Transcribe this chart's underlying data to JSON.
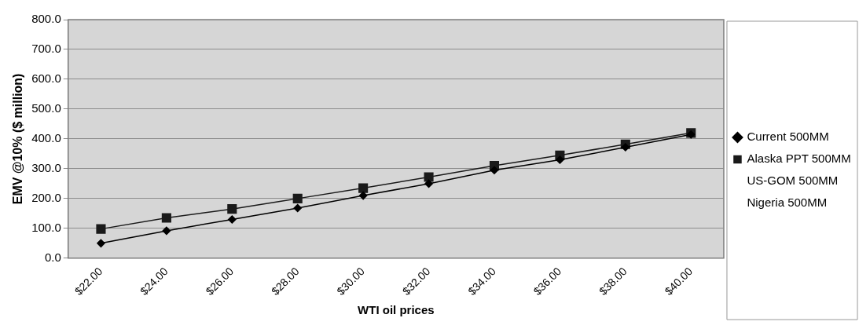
{
  "chart_data": {
    "type": "line",
    "xlabel": "WTI oil prices",
    "ylabel": "EMV @10% ($ million)",
    "categories": [
      "$22.00",
      "$24.00",
      "$26.00",
      "$28.00",
      "$30.00",
      "$32.00",
      "$34.00",
      "$36.00",
      "$38.00",
      "$40.00"
    ],
    "series": [
      {
        "name": "Current 500MM",
        "color": "#000000",
        "marker": "diamond",
        "values": [
          50,
          92,
          130,
          168,
          210,
          250,
          295,
          330,
          372,
          415
        ]
      },
      {
        "name": "Alaska PPT 500MM",
        "color": "#1a1a1a",
        "marker": "square",
        "values": [
          98,
          135,
          165,
          200,
          235,
          272,
          310,
          345,
          382,
          420
        ]
      },
      {
        "name": "US-GOM 500MM",
        "color": null,
        "marker": "none",
        "values": [
          null,
          null,
          null,
          null,
          null,
          null,
          null,
          null,
          null,
          null
        ]
      },
      {
        "name": "Nigeria 500MM",
        "color": null,
        "marker": "none",
        "values": [
          null,
          null,
          null,
          null,
          null,
          null,
          null,
          null,
          null,
          null
        ]
      }
    ],
    "ylim": [
      0,
      800
    ],
    "yticks": [
      {
        "value": 0,
        "label": "0.0"
      },
      {
        "value": 100,
        "label": "100.0"
      },
      {
        "value": 200,
        "label": "200.0"
      },
      {
        "value": 300,
        "label": "300.0"
      },
      {
        "value": 400,
        "label": "400.0"
      },
      {
        "value": 500,
        "label": "500.0"
      },
      {
        "value": 600,
        "label": "600.0"
      },
      {
        "value": 700,
        "label": "700.0"
      },
      {
        "value": 800,
        "label": "800.0"
      }
    ],
    "grid": "y",
    "legend": "right",
    "line_style": "solid"
  }
}
